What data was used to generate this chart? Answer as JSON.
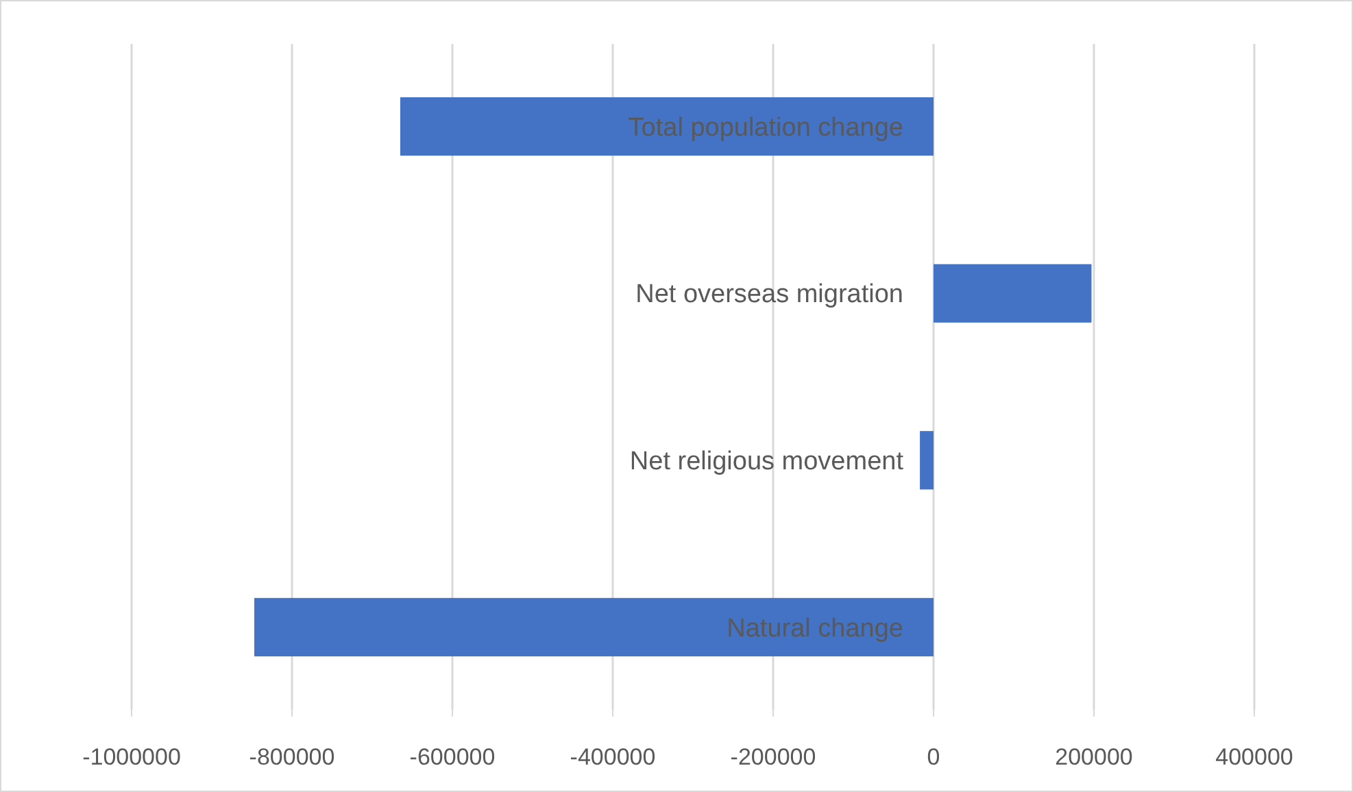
{
  "chart_data": {
    "type": "bar",
    "orientation": "horizontal",
    "categories": [
      "Total population change",
      "Net overseas migration",
      "Net religious movement",
      "Natural change"
    ],
    "values": [
      -665000,
      197000,
      -17000,
      -847000
    ],
    "color": "#4472c4",
    "xlim": [
      -1000000,
      400000
    ],
    "xticks": [
      -1000000,
      -800000,
      -600000,
      -400000,
      -200000,
      0,
      200000,
      400000
    ],
    "grid": "x"
  }
}
